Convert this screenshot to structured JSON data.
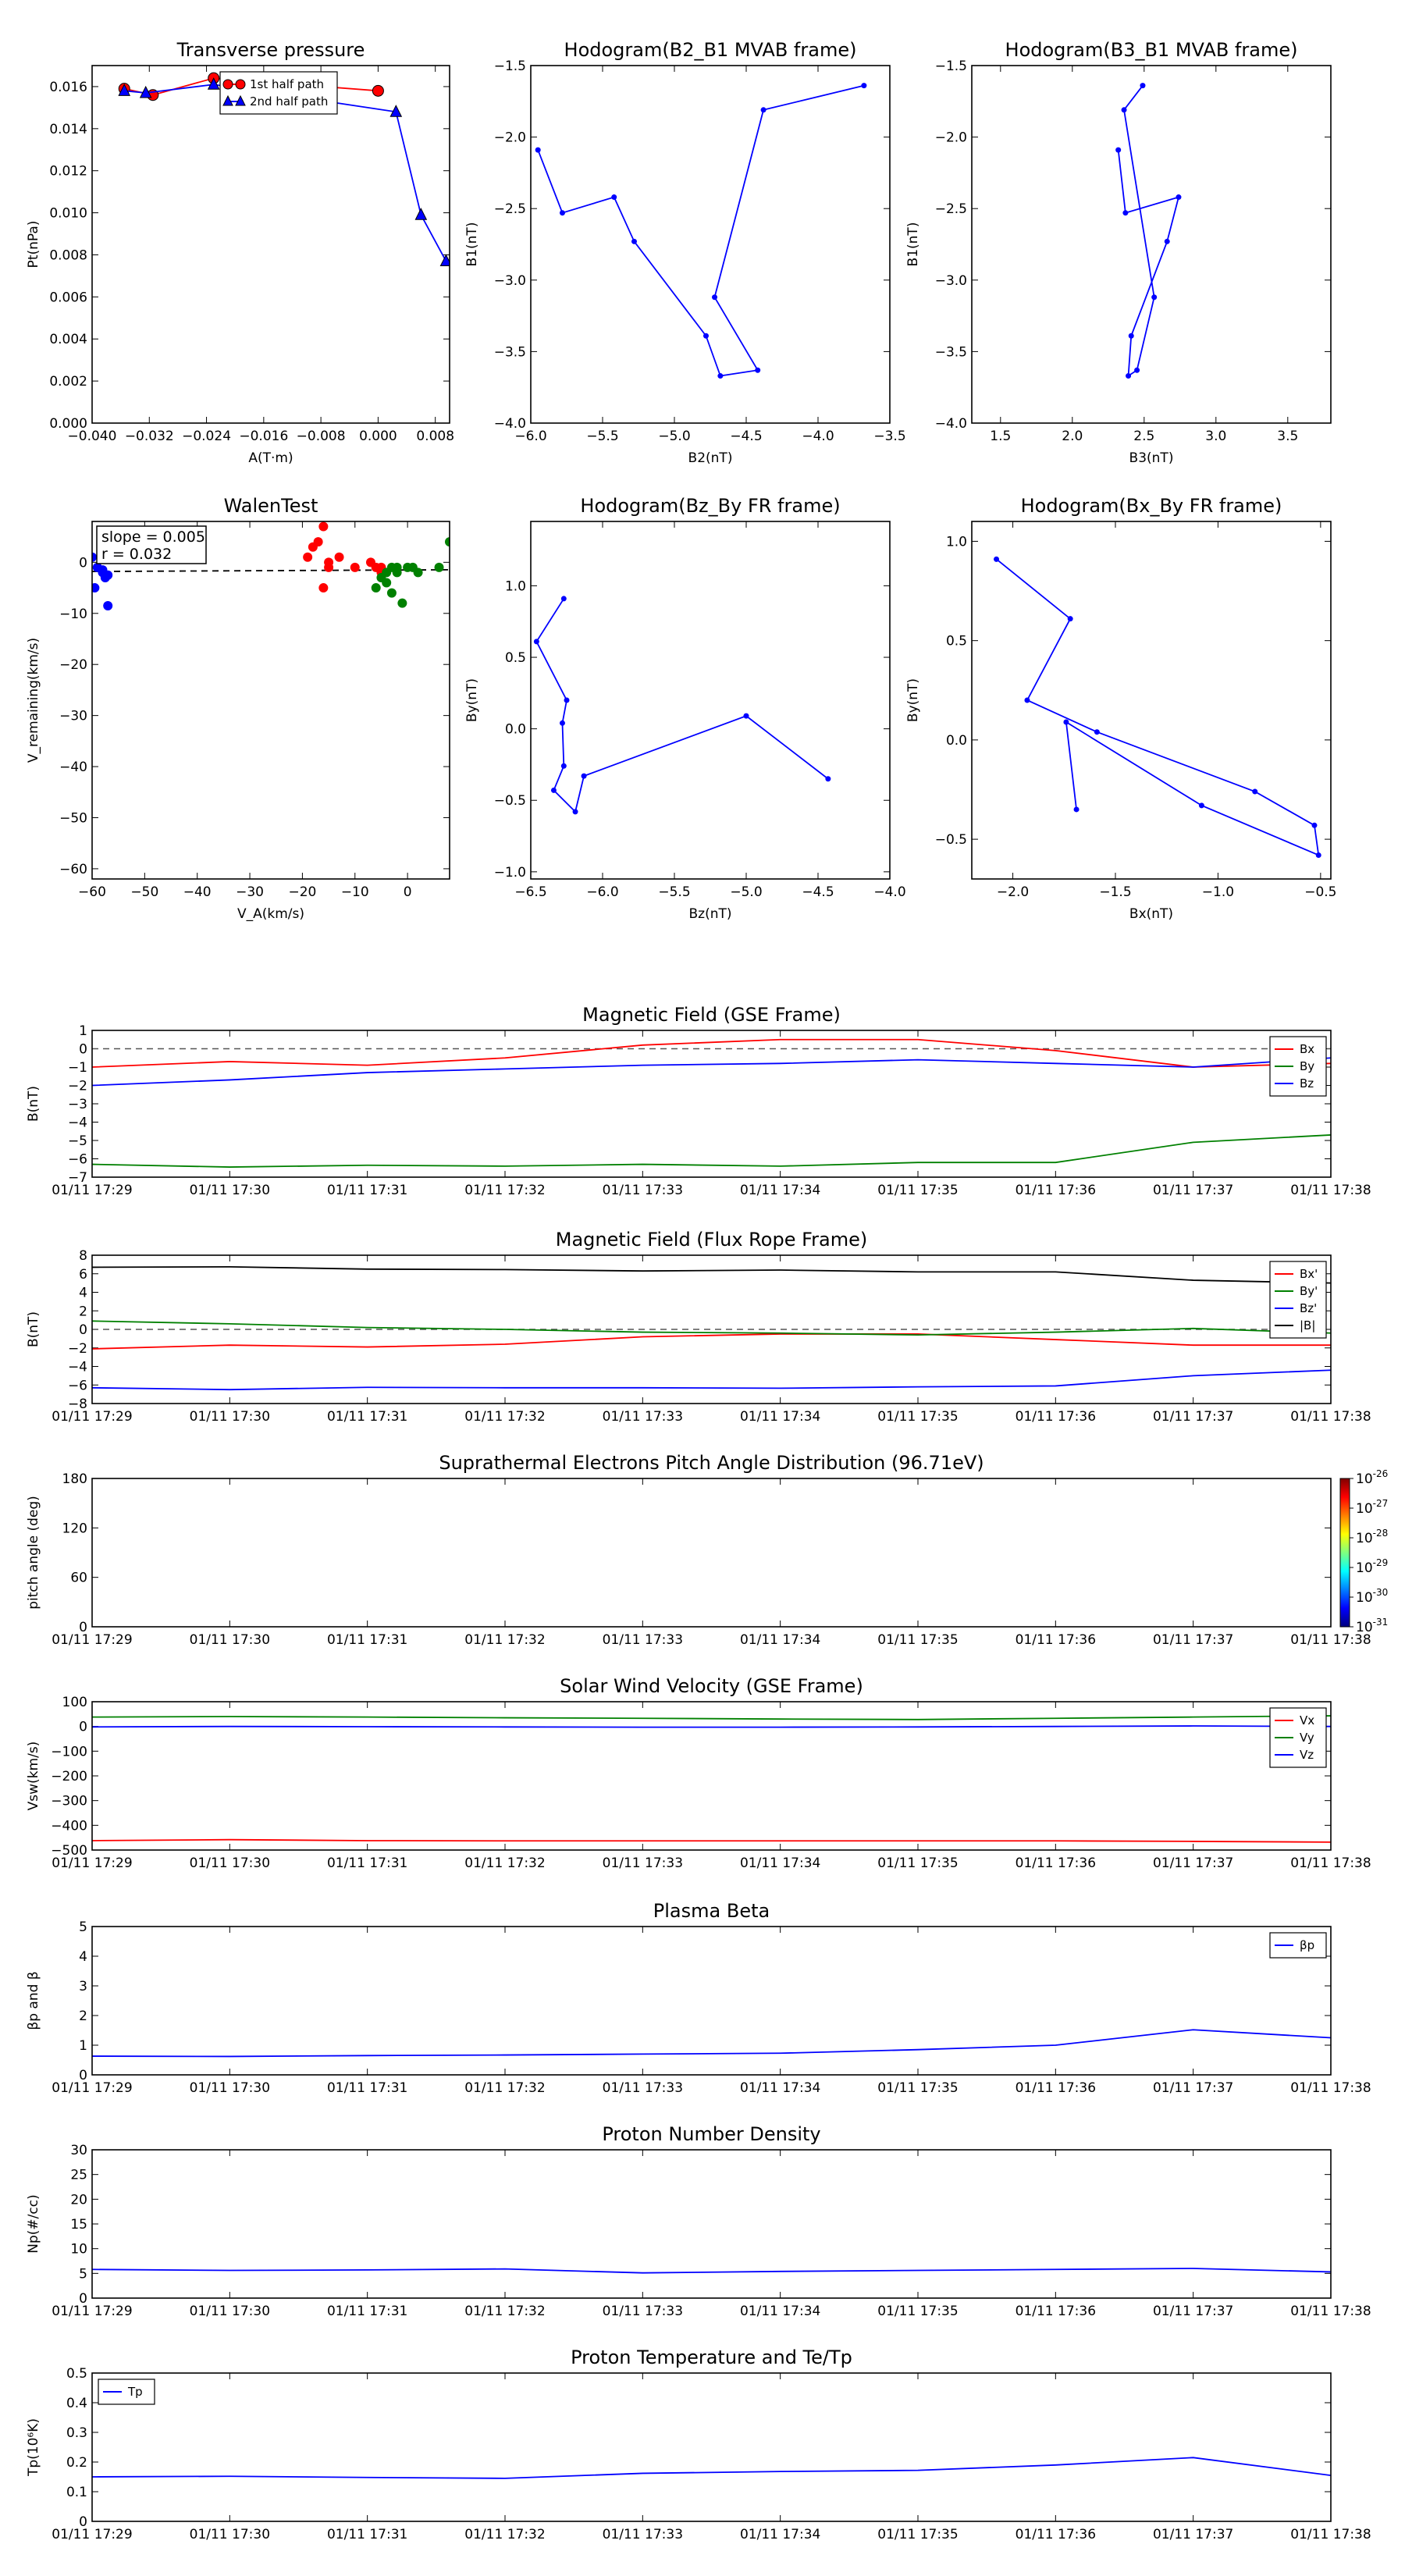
{
  "colors": {
    "red": "#ff0000",
    "green": "#008000",
    "blue": "#0000ff",
    "black": "#000000",
    "dash": "#555555"
  },
  "time_ticks": [
    "01/11 17:29",
    "01/11 17:30",
    "01/11 17:31",
    "01/11 17:32",
    "01/11 17:33",
    "01/11 17:34",
    "01/11 17:35",
    "01/11 17:36",
    "01/11 17:37",
    "01/11 17:38"
  ],
  "chart_data": [
    {
      "id": "transverse-pressure",
      "type": "line",
      "title": "Transverse pressure",
      "xlabel": "A(T·m)",
      "ylabel": "Pt(nPa)",
      "xlim": [
        -0.04,
        0.01
      ],
      "ylim": [
        0,
        0.017
      ],
      "xticks": [
        -0.04,
        -0.032,
        -0.024,
        -0.016,
        -0.008,
        0,
        0.008
      ],
      "xtick_labels": [
        "−0.040",
        "−0.032",
        "−0.024",
        "−0.016",
        "−0.008",
        "0.000",
        "0.008"
      ],
      "yticks": [
        0,
        0.002,
        0.004,
        0.006,
        0.008,
        0.01,
        0.012,
        0.014,
        0.016
      ],
      "ytick_labels": [
        "0.000",
        "0.002",
        "0.004",
        "0.006",
        "0.008",
        "0.010",
        "0.012",
        "0.014",
        "0.016"
      ],
      "legend": "top-center",
      "series": [
        {
          "name": "1st half path",
          "color": "red",
          "marker": "circle",
          "x": [
            -0.0355,
            -0.0315,
            -0.023,
            0.0
          ],
          "y": [
            0.0159,
            0.0156,
            0.0164,
            0.0158
          ]
        },
        {
          "name": "2nd half path",
          "color": "blue",
          "marker": "triangle",
          "x": [
            -0.0355,
            -0.0325,
            -0.023,
            0.0025,
            0.006,
            0.0095
          ],
          "y": [
            0.0158,
            0.0157,
            0.0161,
            0.0148,
            0.0099,
            0.0077
          ]
        }
      ]
    },
    {
      "id": "hodogram-b2-b1",
      "type": "line",
      "title": "Hodogram(B2_B1 MVAB frame)",
      "xlabel": "B2(nT)",
      "ylabel": "B1(nT)",
      "xlim": [
        -6.0,
        -3.5
      ],
      "ylim": [
        -4.0,
        -1.5
      ],
      "xticks": [
        -6.0,
        -5.5,
        -5.0,
        -4.5,
        -4.0,
        -3.5
      ],
      "xtick_labels": [
        "−6.0",
        "−5.5",
        "−5.0",
        "−4.5",
        "−4.0",
        "−3.5"
      ],
      "yticks": [
        -4.0,
        -3.5,
        -3.0,
        -2.5,
        -2.0,
        -1.5
      ],
      "ytick_labels": [
        "−4.0",
        "−3.5",
        "−3.0",
        "−2.5",
        "−2.0",
        "−1.5"
      ],
      "series": [
        {
          "color": "blue",
          "marker": "dot",
          "x": [
            -5.95,
            -5.78,
            -5.42,
            -5.28,
            -4.78,
            -4.68,
            -4.42,
            -4.72,
            -4.38,
            -3.68
          ],
          "y": [
            -2.09,
            -2.53,
            -2.42,
            -2.73,
            -3.39,
            -3.67,
            -3.63,
            -3.12,
            -1.81,
            -1.64
          ]
        }
      ]
    },
    {
      "id": "hodogram-b3-b1",
      "type": "line",
      "title": "Hodogram(B3_B1 MVAB frame)",
      "xlabel": "B3(nT)",
      "ylabel": "B1(nT)",
      "xlim": [
        1.3,
        3.8
      ],
      "ylim": [
        -4.0,
        -1.5
      ],
      "xticks": [
        1.5,
        2.0,
        2.5,
        3.0,
        3.5
      ],
      "xtick_labels": [
        "1.5",
        "2.0",
        "2.5",
        "3.0",
        "3.5"
      ],
      "yticks": [
        -4.0,
        -3.5,
        -3.0,
        -2.5,
        -2.0,
        -1.5
      ],
      "ytick_labels": [
        "−4.0",
        "−3.5",
        "−3.0",
        "−2.5",
        "−2.0",
        "−1.5"
      ],
      "series": [
        {
          "color": "blue",
          "marker": "dot",
          "x": [
            2.32,
            2.37,
            2.74,
            2.66,
            2.41,
            2.39,
            2.45,
            2.57,
            2.36,
            2.49
          ],
          "y": [
            -2.09,
            -2.53,
            -2.42,
            -2.73,
            -3.39,
            -3.67,
            -3.63,
            -3.12,
            -1.81,
            -1.64
          ]
        }
      ]
    },
    {
      "id": "walen-test",
      "type": "scatter",
      "title": "WalenTest",
      "xlabel": "V_A(km/s)",
      "ylabel": "V_remaining(km/s)",
      "xlim": [
        -60,
        8
      ],
      "ylim": [
        -62,
        8
      ],
      "xticks": [
        -60,
        -50,
        -40,
        -30,
        -20,
        -10,
        0
      ],
      "xtick_labels": [
        "−60",
        "−50",
        "−40",
        "−30",
        "−20",
        "−10",
        "0"
      ],
      "yticks": [
        -60,
        -50,
        -40,
        -30,
        -20,
        -10,
        0
      ],
      "ytick_labels": [
        "−60",
        "−50",
        "−40",
        "−30",
        "−20",
        "−10",
        "0"
      ],
      "annotation": [
        "slope = 0.005",
        "r = 0.032"
      ],
      "fit": {
        "slope": 0.005,
        "intercept": -1.5
      },
      "series": [
        {
          "color": "blue",
          "x": [
            -59.5,
            -59,
            -58,
            -57.5,
            -57,
            -58,
            -57,
            -60
          ],
          "y": [
            -5,
            -1,
            -2,
            -3,
            -2.5,
            -1.5,
            -8.5,
            1
          ]
        },
        {
          "color": "red",
          "x": [
            -19,
            -18,
            -17,
            -16,
            -16,
            -15,
            -15,
            -13,
            -10,
            -7,
            -6,
            -5,
            -5
          ],
          "y": [
            1,
            3,
            4,
            7,
            -5,
            0,
            -1,
            1,
            -1,
            0,
            -1,
            -2,
            -1
          ]
        },
        {
          "color": "green",
          "x": [
            -6,
            -5,
            -4,
            -4,
            -3,
            -3,
            -2,
            -2,
            -1,
            0,
            1,
            2,
            6,
            8
          ],
          "y": [
            -5,
            -3,
            -2,
            -4,
            -6,
            -1,
            -1,
            -2,
            -8,
            -1,
            -1,
            -2,
            -1,
            4
          ]
        }
      ]
    },
    {
      "id": "hodogram-bz-by",
      "type": "line",
      "title": "Hodogram(Bz_By FR frame)",
      "xlabel": "Bz(nT)",
      "ylabel": "By(nT)",
      "xlim": [
        -6.5,
        -4.0
      ],
      "ylim": [
        -1.05,
        1.45
      ],
      "xticks": [
        -6.5,
        -6.0,
        -5.5,
        -5.0,
        -4.5,
        -4.0
      ],
      "xtick_labels": [
        "−6.5",
        "−6.0",
        "−5.5",
        "−5.0",
        "−4.5",
        "−4.0"
      ],
      "yticks": [
        -1.0,
        -0.5,
        0.0,
        0.5,
        1.0
      ],
      "ytick_labels": [
        "−1.0",
        "−0.5",
        "0.0",
        "0.5",
        "1.0"
      ],
      "series": [
        {
          "color": "blue",
          "marker": "dot",
          "x": [
            -6.27,
            -6.46,
            -6.25,
            -6.28,
            -6.27,
            -6.34,
            -6.19,
            -6.13,
            -5.0,
            -4.43
          ],
          "y": [
            0.91,
            0.61,
            0.2,
            0.04,
            -0.26,
            -0.43,
            -0.58,
            -0.33,
            0.09,
            -0.35
          ]
        }
      ]
    },
    {
      "id": "hodogram-bx-by",
      "type": "line",
      "title": "Hodogram(Bx_By FR frame)",
      "xlabel": "Bx(nT)",
      "ylabel": "By(nT)",
      "xlim": [
        -2.2,
        -0.45
      ],
      "ylim": [
        -0.7,
        1.1
      ],
      "xticks": [
        -2.0,
        -1.5,
        -1.0,
        -0.5
      ],
      "xtick_labels": [
        "−2.0",
        "−1.5",
        "−1.0",
        "−0.5"
      ],
      "yticks": [
        -0.5,
        0.0,
        0.5,
        1.0
      ],
      "ytick_labels": [
        "−0.5",
        "0.0",
        "0.5",
        "1.0"
      ],
      "series": [
        {
          "color": "blue",
          "marker": "dot",
          "x": [
            -2.08,
            -1.72,
            -1.93,
            -1.59,
            -0.82,
            -0.53,
            -0.51,
            -1.08,
            -1.74,
            -1.69
          ],
          "y": [
            0.91,
            0.61,
            0.2,
            0.04,
            -0.26,
            -0.43,
            -0.58,
            -0.33,
            0.09,
            -0.35
          ]
        }
      ]
    },
    {
      "id": "mag-gse",
      "type": "line",
      "title": "Magnetic Field (GSE Frame)",
      "ylabel": "B(nT)",
      "ylim": [
        -7,
        1
      ],
      "yticks": [
        -7,
        -6,
        -5,
        -4,
        -3,
        -2,
        -1,
        0,
        1
      ],
      "ytick_labels": [
        "−7",
        "−6",
        "−5",
        "−4",
        "−3",
        "−2",
        "−1",
        "0",
        "1"
      ],
      "zero_line": true,
      "legend": "top-right",
      "series": [
        {
          "name": "Bx",
          "color": "red",
          "x": [
            0,
            1,
            2,
            3,
            4,
            5,
            6,
            7,
            8,
            9
          ],
          "y": [
            -1.0,
            -0.7,
            -0.9,
            -0.5,
            0.2,
            0.5,
            0.5,
            -0.1,
            -1.0,
            -0.8
          ]
        },
        {
          "name": "By",
          "color": "green",
          "x": [
            0,
            1,
            2,
            3,
            4,
            5,
            6,
            7,
            8,
            9
          ],
          "y": [
            -6.3,
            -6.45,
            -6.35,
            -6.4,
            -6.3,
            -6.4,
            -6.2,
            -6.2,
            -5.1,
            -4.7
          ]
        },
        {
          "name": "Bz",
          "color": "blue",
          "x": [
            0,
            1,
            2,
            3,
            4,
            5,
            6,
            7,
            8,
            9
          ],
          "y": [
            -2.0,
            -1.7,
            -1.3,
            -1.1,
            -0.9,
            -0.8,
            -0.6,
            -0.8,
            -1.0,
            -0.5
          ]
        }
      ]
    },
    {
      "id": "mag-fr",
      "type": "line",
      "title": "Magnetic Field (Flux Rope Frame)",
      "ylabel": "B(nT)",
      "ylim": [
        -8,
        8
      ],
      "yticks": [
        -8,
        -6,
        -4,
        -2,
        0,
        2,
        4,
        6,
        8
      ],
      "ytick_labels": [
        "−8",
        "−6",
        "−4",
        "−2",
        "0",
        "2",
        "4",
        "6",
        "8"
      ],
      "zero_line": true,
      "legend": "top-right",
      "series": [
        {
          "name": "Bx'",
          "color": "red",
          "x": [
            0,
            1,
            2,
            3,
            4,
            5,
            6,
            7,
            8,
            9
          ],
          "y": [
            -2.1,
            -1.7,
            -1.9,
            -1.6,
            -0.8,
            -0.5,
            -0.5,
            -1.1,
            -1.7,
            -1.7
          ]
        },
        {
          "name": "By'",
          "color": "green",
          "x": [
            0,
            1,
            2,
            3,
            4,
            5,
            6,
            7,
            8,
            9
          ],
          "y": [
            0.9,
            0.6,
            0.2,
            0.0,
            -0.3,
            -0.4,
            -0.6,
            -0.3,
            0.1,
            -0.4
          ]
        },
        {
          "name": "Bz'",
          "color": "blue",
          "x": [
            0,
            1,
            2,
            3,
            4,
            5,
            6,
            7,
            8,
            9
          ],
          "y": [
            -6.3,
            -6.5,
            -6.25,
            -6.3,
            -6.3,
            -6.35,
            -6.2,
            -6.1,
            -5.0,
            -4.4
          ]
        },
        {
          "name": "|B|",
          "color": "black",
          "x": [
            0,
            1,
            2,
            3,
            4,
            5,
            6,
            7,
            8,
            9
          ],
          "y": [
            6.7,
            6.75,
            6.5,
            6.45,
            6.3,
            6.4,
            6.2,
            6.2,
            5.3,
            5.0
          ]
        }
      ]
    },
    {
      "id": "pad",
      "type": "heatmap",
      "title": "Suprathermal Electrons Pitch Angle Distribution (96.71eV)",
      "ylabel": "pitch angle (deg)",
      "ylim": [
        0,
        180
      ],
      "yticks": [
        0,
        60,
        120,
        180
      ],
      "ytick_labels": [
        "0",
        "60",
        "120",
        "180"
      ],
      "colorbar": {
        "exponents": [
          "-26",
          "-27",
          "-28",
          "-29",
          "-30",
          "-31"
        ],
        "base": "10"
      }
    },
    {
      "id": "vsw",
      "type": "line",
      "title": "Solar Wind Velocity (GSE Frame)",
      "ylabel": "Vsw(km/s)",
      "ylim": [
        -500,
        100
      ],
      "yticks": [
        -500,
        -400,
        -300,
        -200,
        -100,
        0,
        100
      ],
      "ytick_labels": [
        "−500",
        "−400",
        "−300",
        "−200",
        "−100",
        "0",
        "100"
      ],
      "legend": "top-right",
      "series": [
        {
          "name": "Vx",
          "color": "red",
          "x": [
            0,
            1,
            2,
            3,
            4,
            5,
            6,
            7,
            8,
            9
          ],
          "y": [
            -462,
            -458,
            -462,
            -463,
            -463,
            -463,
            -463,
            -463,
            -465,
            -468
          ]
        },
        {
          "name": "Vy",
          "color": "green",
          "x": [
            0,
            1,
            2,
            3,
            4,
            5,
            6,
            7,
            8,
            9
          ],
          "y": [
            38,
            40,
            38,
            35,
            33,
            30,
            28,
            33,
            38,
            43
          ]
        },
        {
          "name": "Vz",
          "color": "blue",
          "x": [
            0,
            1,
            2,
            3,
            4,
            5,
            6,
            7,
            8,
            9
          ],
          "y": [
            -2,
            0,
            -1,
            -2,
            -3,
            -3,
            -2,
            0,
            2,
            0
          ]
        }
      ]
    },
    {
      "id": "plasma-beta",
      "type": "line",
      "title": "Plasma Beta",
      "ylabel": "βp and β",
      "ylim": [
        0,
        5
      ],
      "yticks": [
        0,
        1,
        2,
        3,
        4,
        5
      ],
      "ytick_labels": [
        "0",
        "1",
        "2",
        "3",
        "4",
        "5"
      ],
      "legend": "top-right",
      "series": [
        {
          "name": "βp",
          "color": "blue",
          "x": [
            0,
            1,
            2,
            3,
            4,
            5,
            6,
            7,
            8,
            9
          ],
          "y": [
            0.63,
            0.62,
            0.65,
            0.67,
            0.7,
            0.73,
            0.85,
            1.0,
            1.52,
            1.25
          ]
        }
      ]
    },
    {
      "id": "density",
      "type": "line",
      "title": "Proton Number Density",
      "ylabel": "Np(#/cc)",
      "ylim": [
        0,
        30
      ],
      "yticks": [
        0,
        5,
        10,
        15,
        20,
        25,
        30
      ],
      "ytick_labels": [
        "0",
        "5",
        "10",
        "15",
        "20",
        "25",
        "30"
      ],
      "series": [
        {
          "color": "blue",
          "x": [
            0,
            1,
            2,
            3,
            4,
            5,
            6,
            7,
            8,
            9
          ],
          "y": [
            5.8,
            5.6,
            5.7,
            5.9,
            5.1,
            5.4,
            5.6,
            5.8,
            6.0,
            5.3
          ]
        }
      ]
    },
    {
      "id": "temperature",
      "type": "line",
      "title": "Proton Temperature and Te/Tp",
      "ylabel": "Tp(10⁶K)",
      "ylim": [
        0,
        0.5
      ],
      "yticks": [
        0,
        0.1,
        0.2,
        0.3,
        0.4,
        0.5
      ],
      "ytick_labels": [
        "0",
        "0.1",
        "0.2",
        "0.3",
        "0.4",
        "0.5"
      ],
      "legend": "top-left",
      "series": [
        {
          "name": "Tp",
          "color": "blue",
          "x": [
            0,
            1,
            2,
            3,
            4,
            5,
            6,
            7,
            8,
            9
          ],
          "y": [
            0.15,
            0.152,
            0.148,
            0.145,
            0.162,
            0.168,
            0.172,
            0.19,
            0.215,
            0.155
          ]
        }
      ]
    }
  ]
}
